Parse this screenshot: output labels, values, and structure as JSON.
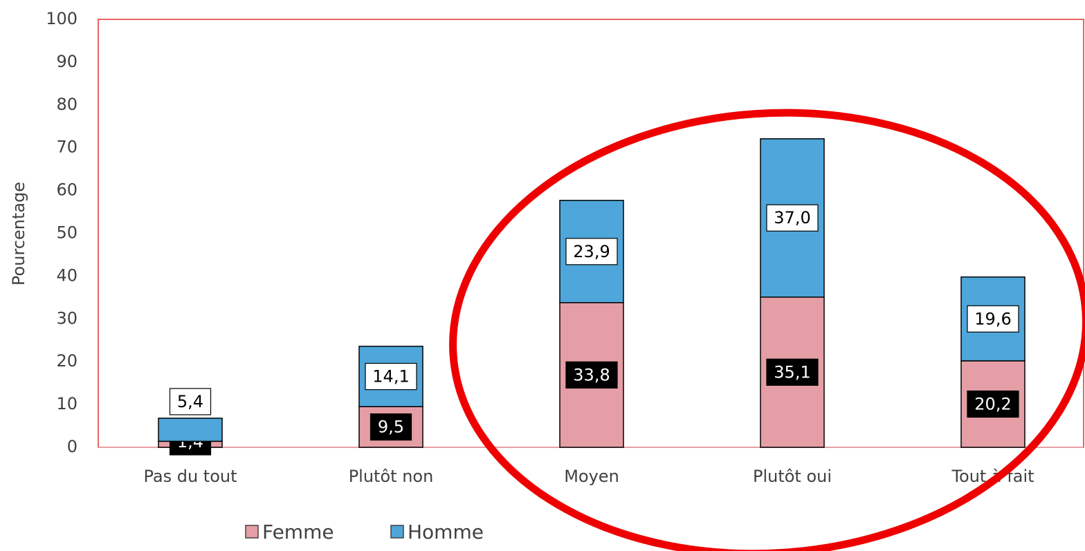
{
  "chart_data": {
    "type": "stacked_bar",
    "y_label": "Pourcentage",
    "categories": [
      "Pas du tout",
      "Plutôt non",
      "Moyen",
      "Plutôt oui",
      "Tout à fait"
    ],
    "series": [
      {
        "name": "Femme",
        "color": "#e59ea5",
        "values": [
          1.4,
          9.5,
          33.8,
          35.1,
          20.2
        ],
        "value_labels": [
          "1,4",
          "9,5",
          "33,8",
          "35,1",
          "20,2"
        ]
      },
      {
        "name": "Homme",
        "color": "#4ea6da",
        "values": [
          5.4,
          14.1,
          23.9,
          37.0,
          19.6
        ],
        "value_labels": [
          "5,4",
          "14,1",
          "23,9",
          "37,0",
          "19,6"
        ]
      }
    ],
    "ylim": [
      0,
      100
    ],
    "yticks": [
      0,
      10,
      20,
      30,
      40,
      50,
      60,
      70,
      80,
      90,
      100
    ],
    "grid": false,
    "legend": "bottom"
  }
}
